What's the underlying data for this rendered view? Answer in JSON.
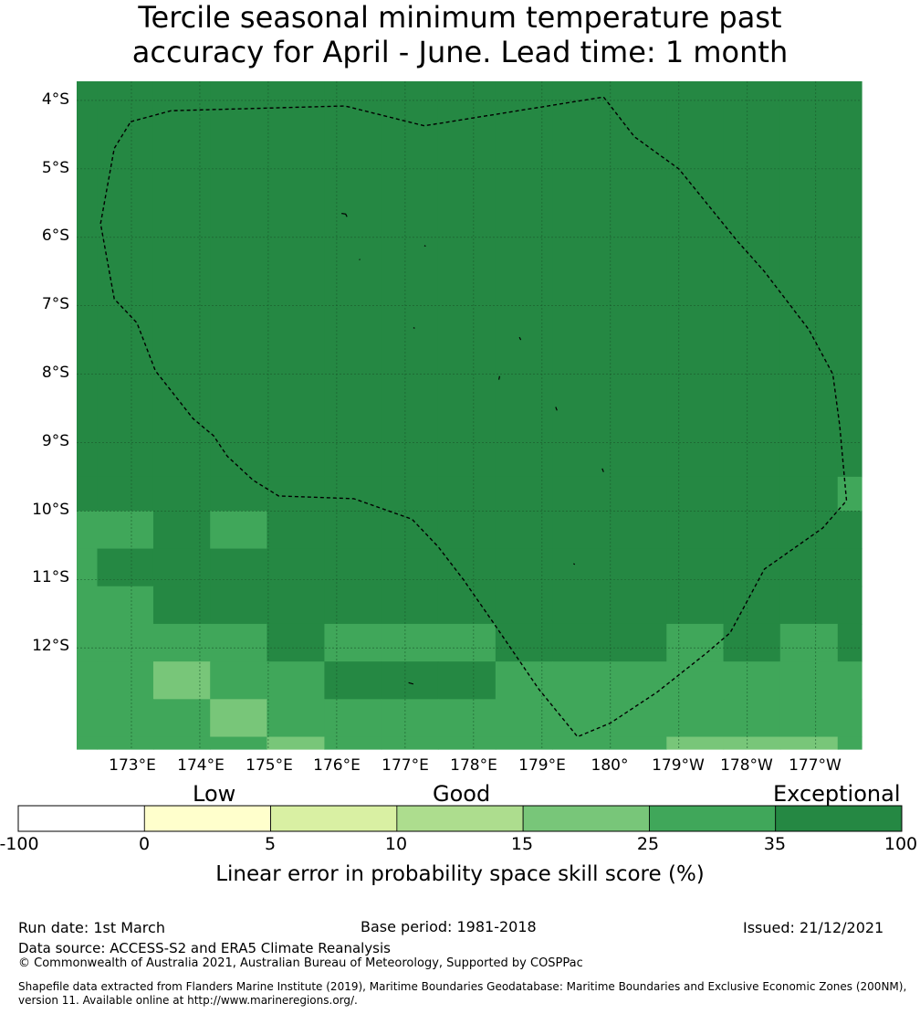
{
  "title": {
    "line1": "Tercile seasonal minimum temperature past",
    "line2": "accuracy for April - June. Lead time: 1 month"
  },
  "map": {
    "lat_labels": [
      "4°S",
      "5°S",
      "6°S",
      "7°S",
      "8°S",
      "9°S",
      "10°S",
      "11°S",
      "12°S"
    ],
    "lat_values": [
      -4,
      -5,
      -6,
      -7,
      -8,
      -9,
      -10,
      -11,
      -12
    ],
    "lon_labels": [
      "173°E",
      "174°E",
      "175°E",
      "176°E",
      "177°E",
      "178°E",
      "179°E",
      "180°",
      "179°W",
      "178°W",
      "177°W"
    ],
    "lon_values": [
      173,
      174,
      175,
      176,
      177,
      178,
      179,
      180,
      181,
      182,
      183
    ],
    "lon_range": [
      172.2,
      183.67
    ],
    "lat_range": [
      -3.72,
      -13.48
    ],
    "grid": true,
    "eez_boundary": [
      [
        172.99,
        -4.31
      ],
      [
        173.58,
        -4.15
      ],
      [
        176.12,
        -4.08
      ],
      [
        177.28,
        -4.37
      ],
      [
        179.9,
        -3.95
      ],
      [
        180.35,
        -4.53
      ],
      [
        181.0,
        -5.0
      ],
      [
        181.85,
        -6.05
      ],
      [
        182.25,
        -6.5
      ],
      [
        182.9,
        -7.35
      ],
      [
        183.25,
        -8.0
      ],
      [
        183.35,
        -8.75
      ],
      [
        183.45,
        -9.85
      ],
      [
        183.1,
        -10.25
      ],
      [
        182.25,
        -10.85
      ],
      [
        181.75,
        -11.78
      ],
      [
        181.4,
        -12.08
      ],
      [
        180.68,
        -12.65
      ],
      [
        180.0,
        -13.1
      ],
      [
        179.52,
        -13.3
      ],
      [
        178.95,
        -12.6
      ],
      [
        178.3,
        -11.65
      ],
      [
        177.85,
        -11.0
      ],
      [
        177.48,
        -10.52
      ],
      [
        177.1,
        -10.12
      ],
      [
        176.25,
        -9.82
      ],
      [
        175.15,
        -9.78
      ],
      [
        174.78,
        -9.55
      ],
      [
        174.4,
        -9.2
      ],
      [
        174.2,
        -8.9
      ],
      [
        173.9,
        -8.65
      ],
      [
        173.35,
        -7.95
      ],
      [
        173.08,
        -7.25
      ],
      [
        172.75,
        -6.9
      ],
      [
        172.55,
        -5.8
      ],
      [
        172.75,
        -4.7
      ],
      [
        172.99,
        -4.31
      ]
    ],
    "islands": [
      [
        [
          176.07,
          -5.65
        ],
        [
          176.13,
          -5.66
        ],
        [
          176.15,
          -5.7
        ]
      ],
      [
        [
          177.28,
          -6.12
        ],
        [
          177.3,
          -6.13
        ]
      ],
      [
        [
          176.33,
          -6.32
        ],
        [
          176.34,
          -6.33
        ]
      ],
      [
        [
          177.12,
          -7.32
        ],
        [
          177.14,
          -7.33
        ]
      ],
      [
        [
          178.67,
          -7.46
        ],
        [
          178.69,
          -7.5
        ]
      ],
      [
        [
          178.38,
          -8.03
        ],
        [
          178.37,
          -8.08
        ]
      ],
      [
        [
          179.2,
          -8.48
        ],
        [
          179.22,
          -8.53
        ]
      ],
      [
        [
          179.88,
          -9.38
        ],
        [
          179.9,
          -9.43
        ]
      ],
      [
        [
          179.46,
          -10.77
        ],
        [
          179.48,
          -10.78
        ]
      ],
      [
        [
          177.05,
          -12.51
        ],
        [
          177.12,
          -12.53
        ]
      ]
    ]
  },
  "skill_grid": {
    "lon_edges": [
      172.2,
      172.5,
      173.32,
      174.15,
      174.98,
      175.82,
      176.65,
      177.48,
      178.32,
      179.15,
      179.98,
      180.82,
      181.65,
      182.48,
      183.32,
      183.67
    ],
    "lat_edges": [
      -3.72,
      -9.5,
      -10.0,
      -10.55,
      -11.1,
      -11.65,
      -12.2,
      -12.75,
      -13.3,
      -13.48
    ],
    "rows": [
      [
        "35-100",
        "35-100",
        "35-100",
        "35-100",
        "35-100",
        "35-100",
        "35-100",
        "35-100",
        "35-100",
        "35-100",
        "35-100",
        "35-100",
        "35-100",
        "35-100",
        "35-100"
      ],
      [
        "35-100",
        "35-100",
        "35-100",
        "35-100",
        "35-100",
        "35-100",
        "35-100",
        "35-100",
        "35-100",
        "35-100",
        "35-100",
        "35-100",
        "35-100",
        "35-100",
        "25-35"
      ],
      [
        "25-35",
        "25-35",
        "35-100",
        "25-35",
        "35-100",
        "35-100",
        "35-100",
        "35-100",
        "35-100",
        "35-100",
        "35-100",
        "35-100",
        "35-100",
        "35-100",
        "35-100"
      ],
      [
        "25-35",
        "35-100",
        "35-100",
        "35-100",
        "35-100",
        "35-100",
        "35-100",
        "35-100",
        "35-100",
        "35-100",
        "35-100",
        "35-100",
        "35-100",
        "35-100",
        "35-100"
      ],
      [
        "25-35",
        "25-35",
        "35-100",
        "35-100",
        "35-100",
        "35-100",
        "35-100",
        "35-100",
        "35-100",
        "35-100",
        "35-100",
        "35-100",
        "35-100",
        "35-100",
        "35-100"
      ],
      [
        "25-35",
        "25-35",
        "25-35",
        "25-35",
        "35-100",
        "25-35",
        "25-35",
        "25-35",
        "35-100",
        "35-100",
        "35-100",
        "25-35",
        "35-100",
        "25-35",
        "35-100"
      ],
      [
        "25-35",
        "25-35",
        "15-25",
        "25-35",
        "25-35",
        "35-100",
        "35-100",
        "35-100",
        "25-35",
        "25-35",
        "25-35",
        "25-35",
        "25-35",
        "25-35",
        "25-35"
      ],
      [
        "25-35",
        "25-35",
        "25-35",
        "15-25",
        "25-35",
        "25-35",
        "25-35",
        "25-35",
        "25-35",
        "25-35",
        "25-35",
        "25-35",
        "25-35",
        "25-35",
        "25-35"
      ],
      [
        "25-35",
        "25-35",
        "25-35",
        "25-35",
        "15-25",
        "25-35",
        "25-35",
        "25-35",
        "25-35",
        "25-35",
        "25-35",
        "15-25",
        "15-25",
        "15-25",
        "25-35"
      ]
    ]
  },
  "colors": {
    "35-100": "#258843",
    "25-35": "#40a75a",
    "15-25": "#78c679",
    "10-15": "#addd8e",
    "5-10": "#d9f0a3",
    "0-5": "#ffffcc",
    "-100-0": "#ffffff",
    "gridline": "#1a5a2c",
    "boundary": "#000000"
  },
  "colorbar": {
    "categories": [
      "Low",
      "Good",
      "Exceptional"
    ],
    "ticks": [
      "-100",
      "0",
      "5",
      "10",
      "15",
      "25",
      "35",
      "100"
    ],
    "bins": [
      "-100-0",
      "0-5",
      "5-10",
      "10-15",
      "15-25",
      "25-35",
      "35-100"
    ],
    "title": "Linear error in probability space skill score (%)"
  },
  "footer": {
    "run_date": "Run date: 1st March",
    "base_period": "Base period: 1981-2018",
    "issued": "Issued: 21/12/2021",
    "data_source": "Data source: ACCESS-S2 and ERA5 Climate Reanalysis",
    "copyright": "© Commonwealth of Australia 2021, Australian Bureau of Meteorology, Supported by COSPPac",
    "shapefile_line1": "Shapefile data extracted from Flanders Marine Institute (2019), Maritime Boundaries Geodatabase: Maritime Boundaries and Exclusive Economic Zones (200NM),",
    "shapefile_line2": "version 11. Available online at http://www.marineregions.org/."
  }
}
